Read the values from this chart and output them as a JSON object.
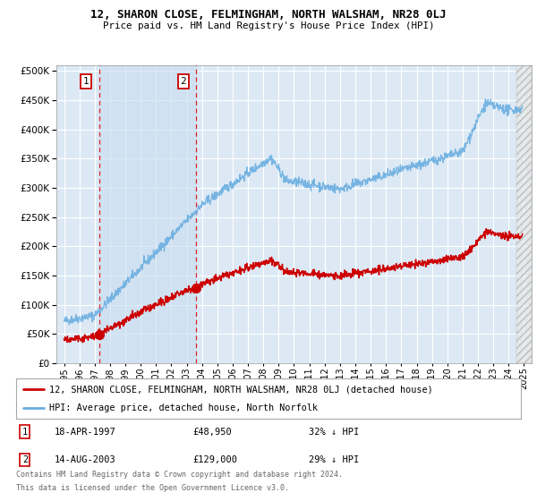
{
  "title": "12, SHARON CLOSE, FELMINGHAM, NORTH WALSHAM, NR28 0LJ",
  "subtitle": "Price paid vs. HM Land Registry's House Price Index (HPI)",
  "yticks": [
    0,
    50000,
    100000,
    150000,
    200000,
    250000,
    300000,
    350000,
    400000,
    450000,
    500000
  ],
  "xlim_start": 1994.5,
  "xlim_end": 2025.5,
  "ylim_min": 0,
  "ylim_max": 510000,
  "bg_color": "#dce9f5",
  "grid_color": "#ffffff",
  "hpi_color": "#6aaee0",
  "price_color": "#cc0000",
  "marker1_x": 1997.29,
  "marker1_y": 48950,
  "marker2_x": 2003.62,
  "marker2_y": 129000,
  "vline1_x": 1997.29,
  "vline2_x": 2003.62,
  "shade_between_vlines": true,
  "legend_line1": "12, SHARON CLOSE, FELMINGHAM, NORTH WALSHAM, NR28 0LJ (detached house)",
  "legend_line2": "HPI: Average price, detached house, North Norfolk",
  "table_row1_num": "1",
  "table_row1_date": "18-APR-1997",
  "table_row1_price": "£48,950",
  "table_row1_hpi": "32% ↓ HPI",
  "table_row2_num": "2",
  "table_row2_date": "14-AUG-2003",
  "table_row2_price": "£129,000",
  "table_row2_hpi": "29% ↓ HPI",
  "footnote1": "Contains HM Land Registry data © Crown copyright and database right 2024.",
  "footnote2": "This data is licensed under the Open Government Licence v3.0.",
  "hatched_region_start": 2024.5,
  "hatched_region_end": 2025.5
}
